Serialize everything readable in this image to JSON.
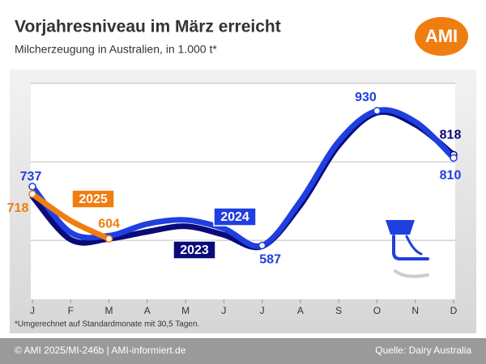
{
  "chart_data": {
    "type": "line",
    "title": "Vorjahresniveau im März erreicht",
    "subtitle": "Milcherzeugung in Australien, in 1.000 t*",
    "logo": "AMI",
    "footnote": "*Umgerechnet auf Standardmonate mit 30,5 Tagen.",
    "footer_left": "© AMI 2025/MI-246b | AMI-informiert.de",
    "footer_right": "Quelle: Dairy Australia",
    "categories": [
      "J",
      "F",
      "M",
      "A",
      "M",
      "J",
      "J",
      "A",
      "S",
      "O",
      "N",
      "D"
    ],
    "series": [
      {
        "name": "2023",
        "color": "#0a0a7a",
        "values": [
          712,
          602,
          604,
          622,
          636,
          614,
          585,
          690,
          842,
          925,
          895,
          818
        ]
      },
      {
        "name": "2024",
        "color": "#1f3fe0",
        "values": [
          737,
          620,
          612,
          642,
          652,
          630,
          587,
          700,
          852,
          930,
          902,
          810
        ]
      },
      {
        "name": "2025",
        "color": "#f07d10",
        "values": [
          718,
          650,
          604,
          null,
          null,
          null,
          null,
          null,
          null,
          null,
          null,
          null
        ]
      }
    ],
    "ylim": [
      450,
      1000
    ],
    "yticks": [
      600,
      800,
      1000
    ],
    "grid": true
  }
}
